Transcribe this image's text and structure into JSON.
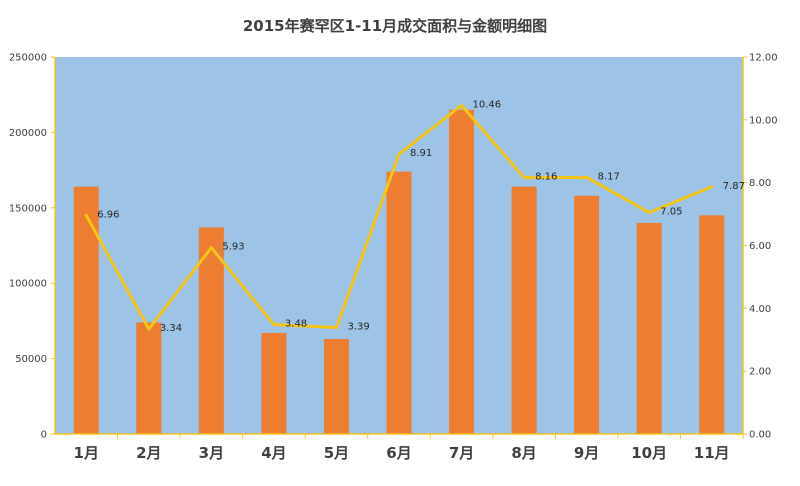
{
  "chart_data": {
    "type": "bar",
    "title": "2015年赛罕区1-11月成交面积与金额明细图",
    "categories": [
      "1月",
      "2月",
      "3月",
      "4月",
      "5月",
      "6月",
      "7月",
      "8月",
      "9月",
      "10月",
      "11月"
    ],
    "series": [
      {
        "type": "bar",
        "axis": "left",
        "color": "#ed7d31",
        "values": [
          164000,
          74000,
          137000,
          67000,
          63000,
          174000,
          215000,
          164000,
          158000,
          140000,
          145000
        ]
      },
      {
        "type": "line",
        "axis": "right",
        "color": "#f5c518",
        "values": [
          6.96,
          3.34,
          5.93,
          3.48,
          3.39,
          8.91,
          10.46,
          8.16,
          8.17,
          7.05,
          7.87
        ],
        "labels": [
          "6.96",
          "3.34",
          "5.93",
          "3.48",
          "3.39",
          "8.91",
          "10.46",
          "8.16",
          "8.17",
          "7.05",
          "7.87"
        ]
      }
    ],
    "y_left": {
      "range": [
        0,
        250000
      ],
      "ticks": [
        "0",
        "50000",
        "100000",
        "150000",
        "200000",
        "250000"
      ]
    },
    "y_right": {
      "range": [
        0,
        12
      ],
      "ticks": [
        "0.00",
        "2.00",
        "4.00",
        "6.00",
        "8.00",
        "10.00",
        "12.00"
      ]
    },
    "grid": false,
    "legend": "none",
    "plot_background": "#9dc3e6",
    "axis_color": "#f5c518"
  }
}
